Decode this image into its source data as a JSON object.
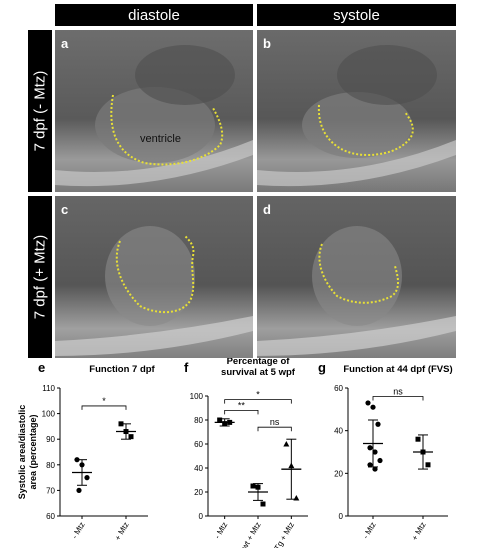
{
  "header": {
    "col1": "diastole",
    "col2": "systole"
  },
  "rows": {
    "row1": "7 dpf (- Mtz)",
    "row2": "7 dpf (+ Mtz)"
  },
  "panels": {
    "a": "a",
    "b": "b",
    "c": "c",
    "d": "d",
    "ventricle_label": "ventricle"
  },
  "outline_color": "#e8e036",
  "chart_data": [
    {
      "type": "scatter",
      "panel_label": "e",
      "title": "Function 7 dpf",
      "ylabel": "Systolic area/diastolic area (percentage)",
      "categories": [
        "- Mtz",
        "+ Mtz"
      ],
      "ylim": [
        60,
        110
      ],
      "yticks": [
        60,
        70,
        80,
        90,
        100,
        110
      ],
      "series": [
        {
          "points": [
            82,
            80,
            75,
            70
          ],
          "mean": 77,
          "error": 5,
          "marker": "circle"
        },
        {
          "points": [
            96,
            93,
            91
          ],
          "mean": 93,
          "error": 3,
          "marker": "square"
        }
      ],
      "significance": [
        {
          "from": 0,
          "to": 1,
          "label": "*"
        }
      ]
    },
    {
      "type": "scatter",
      "panel_label": "f",
      "title": "Percentage of survival at 5 wpf",
      "ylabel": "",
      "categories": [
        "- Mtz",
        "wt + Mtz",
        "Tg + Mtz"
      ],
      "ylim": [
        0,
        100
      ],
      "yticks": [
        0,
        20,
        40,
        60,
        80,
        100
      ],
      "series": [
        {
          "points": [
            80,
            77,
            78
          ],
          "mean": 78,
          "error": 3,
          "marker": "square"
        },
        {
          "points": [
            25,
            24,
            10
          ],
          "mean": 20,
          "error": 7,
          "marker": "square"
        },
        {
          "points": [
            60,
            42,
            15
          ],
          "mean": 39,
          "error": 25,
          "marker": "triangle"
        }
      ],
      "significance": [
        {
          "from": 0,
          "to": 2,
          "label": "*"
        },
        {
          "from": 0,
          "to": 1,
          "label": "**"
        },
        {
          "from": 1,
          "to": 2,
          "label": "ns"
        }
      ]
    },
    {
      "type": "scatter",
      "panel_label": "g",
      "title": "Function at 44 dpf (FVS)",
      "ylabel": "",
      "categories": [
        "- Mtz",
        "+ Mtz"
      ],
      "ylim": [
        0,
        60
      ],
      "yticks": [
        0,
        20,
        40,
        60
      ],
      "series": [
        {
          "points": [
            53,
            51,
            43,
            32,
            30,
            26,
            24,
            22
          ],
          "mean": 34,
          "error": 11,
          "marker": "circle"
        },
        {
          "points": [
            36,
            30,
            24
          ],
          "mean": 30,
          "error": 8,
          "marker": "square"
        }
      ],
      "significance": [
        {
          "from": 0,
          "to": 1,
          "label": "ns"
        }
      ]
    }
  ]
}
